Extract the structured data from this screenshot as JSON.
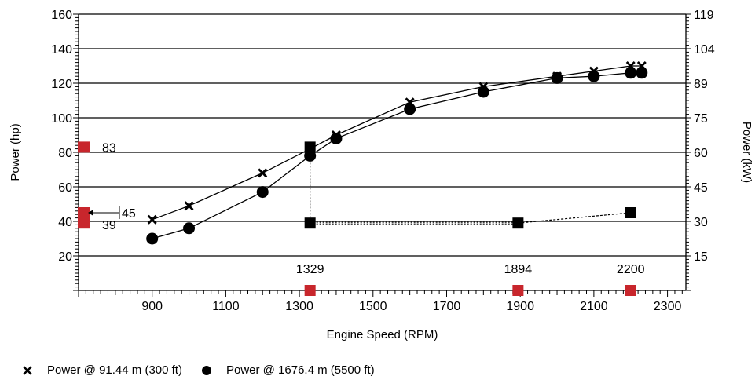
{
  "chart_data": {
    "type": "line",
    "xlabel": "Engine Speed (RPM)",
    "ylabel": "Power (hp)",
    "y2label": "Power (kW)",
    "xlim": [
      700,
      2350
    ],
    "ylim": [
      0,
      160
    ],
    "x_ticks": [
      900,
      1100,
      1300,
      1500,
      1700,
      1900,
      2100,
      2300
    ],
    "y_ticks": [
      20,
      40,
      60,
      80,
      100,
      120,
      140,
      160
    ],
    "y2_ticks": [
      "15",
      "30",
      "45",
      "60",
      "75",
      "89",
      "104",
      "119"
    ],
    "grid": "horizontal",
    "legend_position": "bottom-left",
    "series": [
      {
        "name": "Power @ 91.44 m (300 ft)",
        "marker": "x",
        "x": [
          900,
          1000,
          1200,
          1329,
          1400,
          1600,
          1800,
          2000,
          2100,
          2200,
          2230
        ],
        "y": [
          41,
          49,
          68,
          82,
          90,
          109,
          118,
          124,
          127,
          130,
          130
        ]
      },
      {
        "name": "Power @ 1676.4 m (5500 ft)",
        "marker": "circle",
        "x": [
          900,
          1000,
          1200,
          1329,
          1400,
          1600,
          1800,
          2000,
          2100,
          2200,
          2230
        ],
        "y": [
          30,
          36,
          57,
          78,
          88,
          105,
          115,
          123,
          124,
          126,
          126
        ]
      }
    ],
    "markers": {
      "square_points": [
        {
          "x": 1329,
          "y": 83
        },
        {
          "x": 1329,
          "y": 39
        },
        {
          "x": 1894,
          "y": 39
        },
        {
          "x": 2200,
          "y": 45
        }
      ],
      "rpm_labels": [
        {
          "x": 1329,
          "text": "1329"
        },
        {
          "x": 1894,
          "text": "1894"
        },
        {
          "x": 2200,
          "text": "2200"
        }
      ],
      "left_values": [
        {
          "y": 83,
          "text": "83"
        },
        {
          "y": 45,
          "text": "45"
        },
        {
          "y": 39,
          "text": "39"
        }
      ]
    },
    "colors": {
      "line": "#000000",
      "grid": "#000000",
      "marker_red": "#c8262c"
    }
  }
}
